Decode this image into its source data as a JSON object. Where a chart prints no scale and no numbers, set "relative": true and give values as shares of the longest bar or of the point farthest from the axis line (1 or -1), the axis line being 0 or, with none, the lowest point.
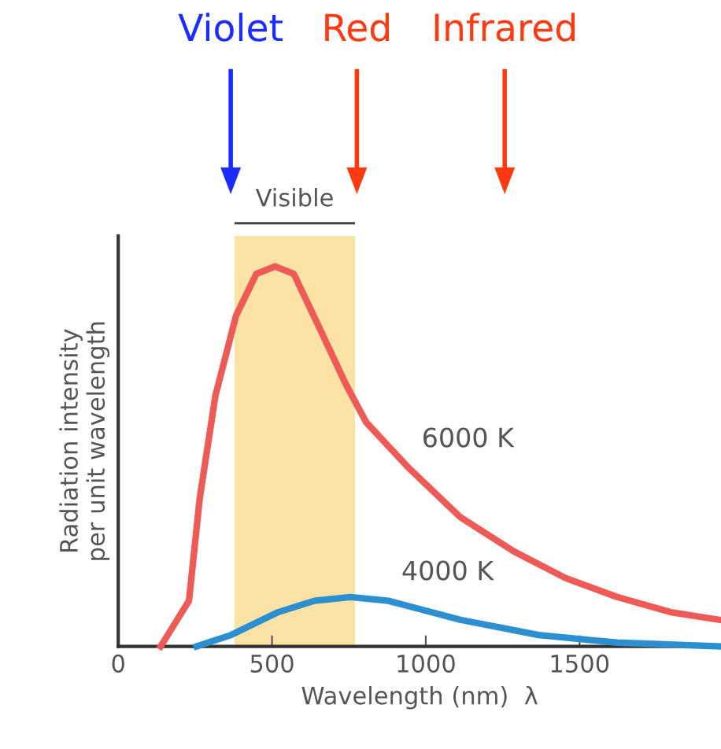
{
  "chart_data": {
    "type": "line",
    "xlabel": "Wavelength (nm)  λ",
    "ylabel": "Radiation intensity\nper unit wavelength",
    "relative": true,
    "xlim": [
      0,
      1960
    ],
    "xticks": [
      0,
      500,
      1000,
      1500
    ],
    "tick_labels": "x",
    "grid": false,
    "legend": false,
    "marker": "none",
    "line_style": "solid",
    "series": [
      {
        "name": "6000 K",
        "color": "#ee5a55",
        "x": [
          138,
          230,
          265,
          316,
          383,
          449,
          510,
          571,
          653,
          740,
          806,
          944,
          1112,
          1286,
          1454,
          1622,
          1796,
          1954
        ],
        "values": [
          0,
          0.12,
          0.39,
          0.66,
          0.87,
          0.98,
          1,
          0.98,
          0.84,
          0.69,
          0.59,
          0.47,
          0.34,
          0.25,
          0.18,
          0.13,
          0.09,
          0.07
        ]
      },
      {
        "name": "4000 K",
        "color": "#2b8fd0",
        "x": [
          255,
          367,
          520,
          638,
          755,
          878,
          1112,
          1367,
          1622,
          1954
        ],
        "values": [
          0,
          0.03,
          0.09,
          0.12,
          0.13,
          0.12,
          0.07,
          0.03,
          0.01,
          0
        ]
      }
    ],
    "bands": [
      {
        "axis": "x",
        "from": 378,
        "to": 770,
        "label": "Visible",
        "color": "#fde2a6"
      }
    ],
    "annotations": [
      "Violet",
      "Red",
      "Infrared"
    ]
  }
}
